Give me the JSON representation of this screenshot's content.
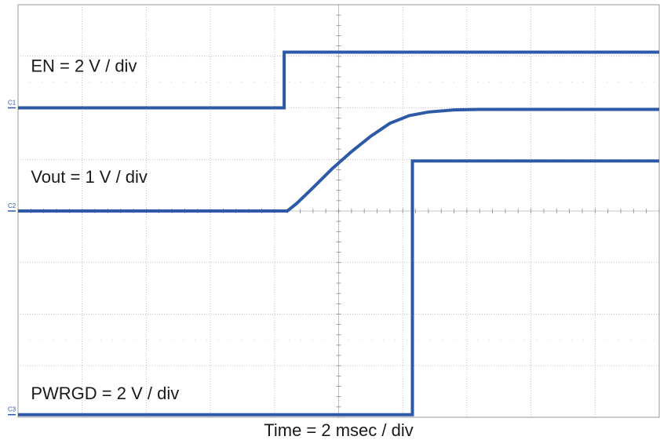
{
  "chart_data": {
    "type": "line",
    "title": "",
    "xlabel": "Time = 2 msec / div",
    "ylabel": "",
    "x_unit": "div",
    "y_unit": "div",
    "xlim": [
      0,
      10
    ],
    "ylim": [
      0,
      8
    ],
    "grid": true,
    "trace_color": "#2d5aa6",
    "series": [
      {
        "name": "EN = 2 V / div",
        "marker": "C1",
        "label_pos": [
          0.2,
          6.7
        ],
        "x": [
          0,
          4.05,
          4.05,
          4.15,
          4.15,
          10
        ],
        "y": [
          6.0,
          6.0,
          6.0,
          6.0,
          7.08,
          7.08
        ]
      },
      {
        "name": "Vout = 1 V / div",
        "marker": "C2",
        "label_pos": [
          0.2,
          4.55
        ],
        "x": [
          0,
          4.2,
          4.35,
          4.6,
          4.9,
          5.2,
          5.5,
          5.8,
          6.1,
          6.4,
          6.8,
          7.2,
          8.0,
          10
        ],
        "y": [
          4.0,
          4.0,
          4.15,
          4.45,
          4.82,
          5.15,
          5.45,
          5.7,
          5.85,
          5.92,
          5.96,
          5.97,
          5.97,
          5.97
        ]
      },
      {
        "name": "PWRGD = 2 V / div",
        "marker": "C3",
        "label_pos": [
          0.2,
          0.35
        ],
        "x": [
          0,
          6.1,
          6.1,
          6.15,
          6.15,
          10
        ],
        "y": [
          0.05,
          0.05,
          0.05,
          0.05,
          4.97,
          4.97
        ]
      }
    ]
  }
}
